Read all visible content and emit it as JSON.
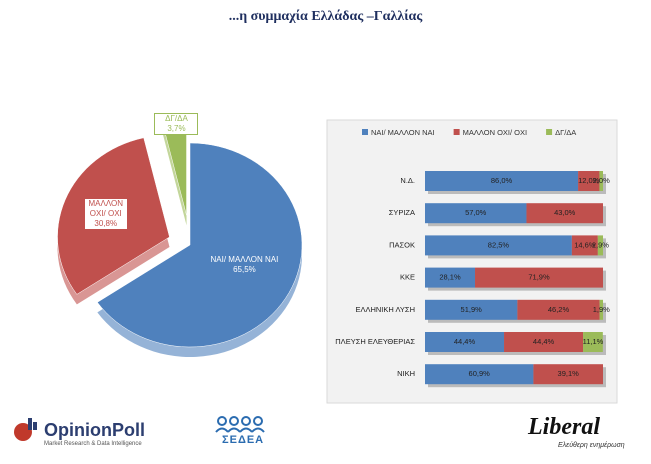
{
  "title": "...η συμμαχία Ελλάδας –Γαλλίας",
  "chart_data": [
    {
      "type": "pie",
      "categories": [
        "ΝΑΙ/ ΜΑΛΛΟΝ ΝΑΙ",
        "ΜΑΛΛΟΝ ΟΧΙ/ ΟΧΙ",
        "ΔΓ/ΔΑ"
      ],
      "values": [
        65.5,
        30.8,
        3.7
      ],
      "value_labels": [
        "65,5%",
        "30,8%",
        "3,7%"
      ],
      "colors": [
        "#4f81bd",
        "#c0504d",
        "#9bbb59"
      ]
    },
    {
      "type": "stacked-barh",
      "categories": [
        "Ν.Δ.",
        "ΣΥΡΙΖΑ",
        "ΠΑΣΟΚ",
        "ΚΚΕ",
        "ΕΛΛΗΝΙΚΗ ΛΥΣΗ",
        "ΠΛΕΥΣΗ ΕΛΕΥΘΕΡΙΑΣ",
        "ΝΙΚΗ"
      ],
      "xlim": [
        0,
        100
      ],
      "series": [
        {
          "name": "ΝΑΙ/ ΜΑΛΛΟΝ ΝΑΙ",
          "color": "#4f81bd",
          "values": [
            86.0,
            57.0,
            82.5,
            28.1,
            51.9,
            44.4,
            60.9
          ],
          "value_labels": [
            "86,0%",
            "57,0%",
            "82,5%",
            "28,1%",
            "51,9%",
            "44,4%",
            "60,9%"
          ]
        },
        {
          "name": "ΜΑΛΛΟΝ ΟΧΙ/ ΟΧΙ",
          "color": "#c0504d",
          "values": [
            12.0,
            43.0,
            14.6,
            71.9,
            46.2,
            44.4,
            39.1
          ],
          "value_labels": [
            "12,0%",
            "43,0%",
            "14,6%",
            "71,9%",
            "46,2%",
            "44,4%",
            "39,1%"
          ]
        },
        {
          "name": "ΔΓ/ΔΑ",
          "color": "#9bbb59",
          "values": [
            2.0,
            null,
            2.9,
            null,
            1.9,
            11.1,
            null
          ],
          "value_labels": [
            "2,0%",
            null,
            "2,9%",
            null,
            "1,9%",
            "11,1%",
            null
          ]
        }
      ]
    }
  ],
  "logos": {
    "opinionpoll": "OpinionPoll",
    "opinionpoll_tagline": "Market Research & Data Intelligence",
    "sedea": "ΣΕΔΕΑ",
    "liberal": "Liberal",
    "liberal_tagline": "Ελεύθερη ενημέρωση"
  }
}
